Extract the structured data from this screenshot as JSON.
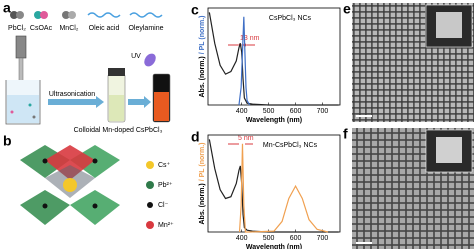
{
  "panel_a": {
    "label": "a",
    "reagents": [
      "PbCl₂",
      "CsOAc",
      "MnCl₂",
      "Oleic acid",
      "Oleylamine"
    ],
    "process": "Ultrasonication",
    "uv": "UV",
    "caption": "Colloidal Mn-doped CsPbCl₃"
  },
  "panel_b": {
    "label": "b",
    "legend": [
      "Cs⁺",
      "Pb²⁺",
      "Cl⁻",
      "Mn²⁺"
    ]
  },
  "panel_e": {
    "label": "e"
  },
  "panel_f": {
    "label": "f"
  },
  "chart_data": [
    {
      "type": "line",
      "label": "c",
      "title": "CsPbCl₃ NCs",
      "annotation": "13 nm",
      "x_label": "Wavelength (nm)",
      "y_label_abs": "Abs. (norm.)",
      "y_label_pl": "/ PL (norm.)",
      "xlim": [
        275,
        765
      ],
      "ylim": [
        0,
        1.1
      ],
      "xticks": [
        400,
        500,
        600,
        700
      ],
      "series": [
        {
          "color": "#222222",
          "x": [
            280,
            300,
            320,
            340,
            360,
            380,
            390,
            395,
            400,
            405,
            410,
            420,
            440,
            500,
            600,
            760
          ],
          "values": [
            1.05,
            0.7,
            0.45,
            0.35,
            0.38,
            0.5,
            0.65,
            0.7,
            0.6,
            0.3,
            0.08,
            0.02,
            0.01,
            0,
            0,
            0
          ]
        },
        {
          "color": "#3f6fc6",
          "x": [
            390,
            398,
            403,
            408,
            412,
            416,
            420,
            430
          ],
          "values": [
            0,
            0.2,
            0.6,
            1.0,
            0.6,
            0.2,
            0.05,
            0
          ]
        }
      ]
    },
    {
      "type": "line",
      "label": "d",
      "title": "Mn-CsPbCl₃ NCs",
      "annotation": "5 nm",
      "x_label": "Wavelength (nm)",
      "y_label_abs": "Abs. (norm.)",
      "y_label_pl": "/ PL (norm.)",
      "xlim": [
        275,
        765
      ],
      "ylim": [
        0,
        1.1
      ],
      "xticks": [
        400,
        500,
        600,
        700
      ],
      "series": [
        {
          "color": "#222222",
          "x": [
            280,
            300,
            320,
            340,
            360,
            380,
            390,
            395,
            400,
            405,
            410,
            420,
            440,
            500,
            600,
            760
          ],
          "values": [
            1.05,
            0.72,
            0.48,
            0.38,
            0.4,
            0.55,
            0.7,
            0.75,
            0.55,
            0.2,
            0.05,
            0.02,
            0.01,
            0,
            0,
            0
          ]
        },
        {
          "color": "#f0a050",
          "x": [
            392,
            398,
            403,
            408,
            414,
            430,
            520,
            550,
            575,
            600,
            625,
            650,
            680,
            720
          ],
          "values": [
            0,
            0.3,
            1.0,
            0.3,
            0,
            0,
            0.01,
            0.12,
            0.38,
            0.52,
            0.38,
            0.14,
            0.03,
            0
          ]
        }
      ]
    }
  ]
}
